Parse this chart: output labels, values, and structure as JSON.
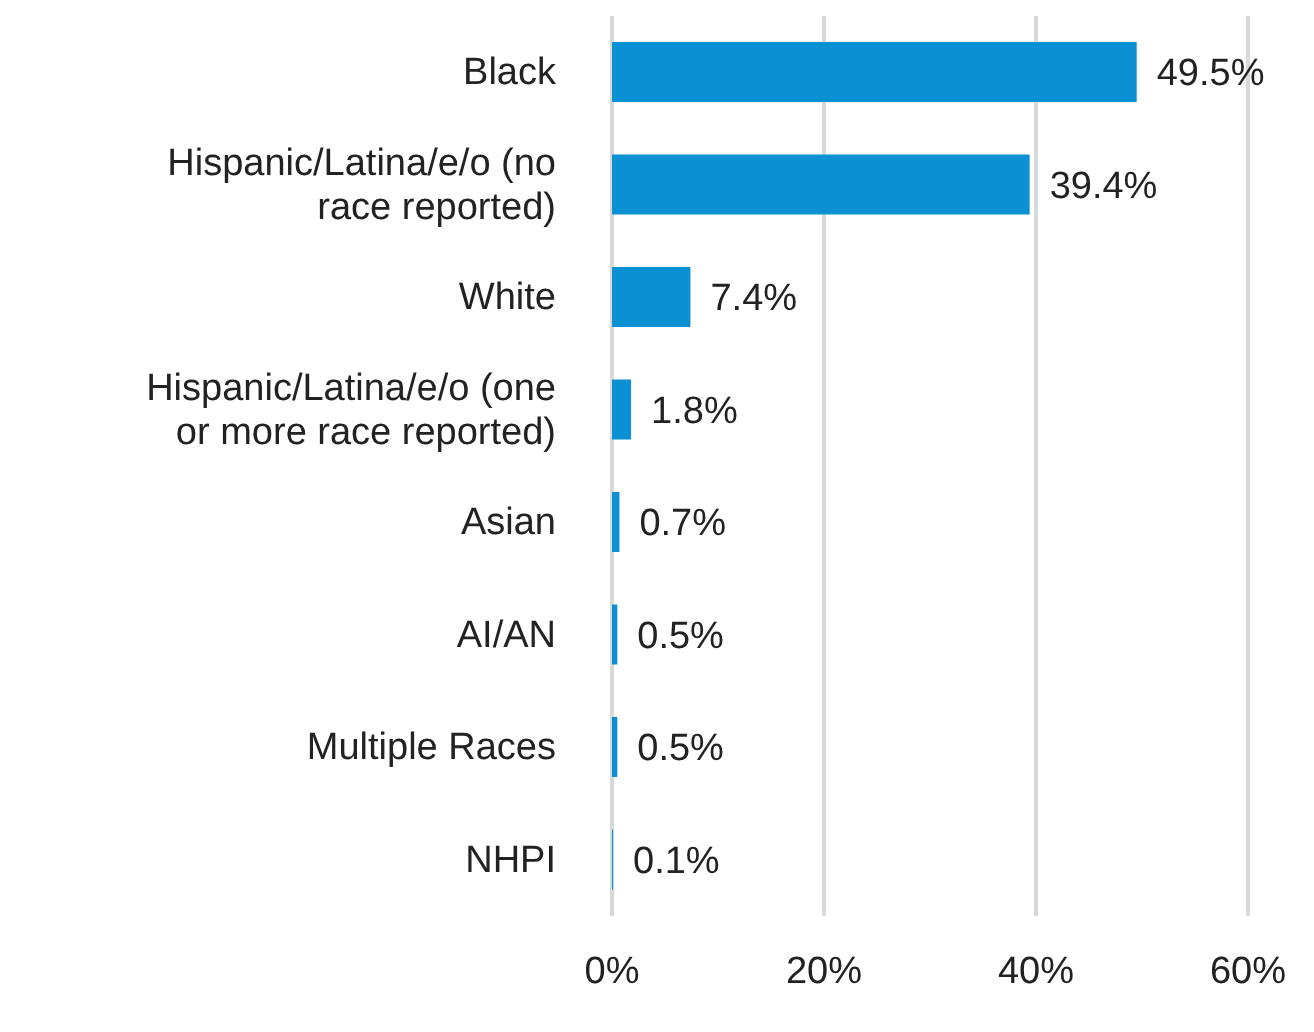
{
  "chart_data": {
    "type": "bar",
    "orientation": "horizontal",
    "categories": [
      "Black",
      "Hispanic/Latina/e/o (no race reported)",
      "White",
      "Hispanic/Latina/e/o (one or more race reported)",
      "Asian",
      "AI/AN",
      "Multiple Races",
      "NHPI"
    ],
    "values": [
      49.5,
      39.4,
      7.4,
      1.8,
      0.7,
      0.5,
      0.5,
      0.1
    ],
    "value_labels": [
      "49.5%",
      "39.4%",
      "7.4%",
      "1.8%",
      "0.7%",
      "0.5%",
      "0.5%",
      "0.1%"
    ],
    "color": "#0a90d3",
    "xlim": [
      0,
      60
    ],
    "xticks": [
      {
        "value": 0,
        "label": "0%"
      },
      {
        "value": 20,
        "label": "20%"
      },
      {
        "value": 40,
        "label": "40%"
      },
      {
        "value": 60,
        "label": "60%"
      }
    ],
    "grid": "x"
  }
}
